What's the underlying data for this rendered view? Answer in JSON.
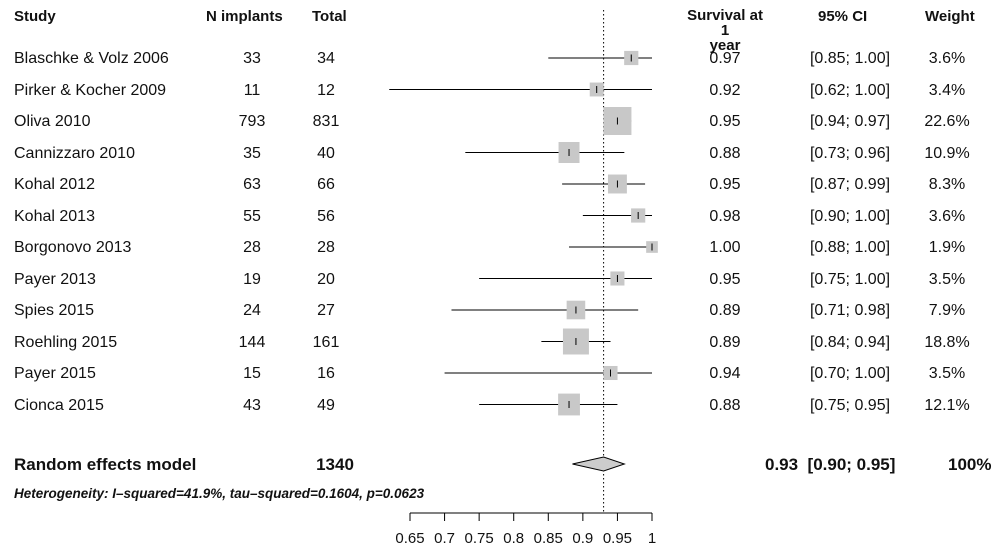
{
  "headers": {
    "study": "Study",
    "n_implants": "N implants",
    "total": "Total",
    "survival_line1": "Survival at 1",
    "survival_line2": "year",
    "ci": "95% CI",
    "weight": "Weight"
  },
  "studies": [
    {
      "name": "Blaschke & Volz 2006",
      "n": "33",
      "total": "34",
      "est": "0.97",
      "ci": "[0.85; 1.00]",
      "weight": "3.6%"
    },
    {
      "name": "Pirker & Kocher 2009",
      "n": "11",
      "total": "12",
      "est": "0.92",
      "ci": "[0.62; 1.00]",
      "weight": "3.4%"
    },
    {
      "name": "Oliva 2010",
      "n": "793",
      "total": "831",
      "est": "0.95",
      "ci": "[0.94; 0.97]",
      "weight": "22.6%"
    },
    {
      "name": "Cannizzaro 2010",
      "n": "35",
      "total": "40",
      "est": "0.88",
      "ci": "[0.73; 0.96]",
      "weight": "10.9%"
    },
    {
      "name": "Kohal 2012",
      "n": "63",
      "total": "66",
      "est": "0.95",
      "ci": "[0.87; 0.99]",
      "weight": "8.3%"
    },
    {
      "name": "Kohal 2013",
      "n": "55",
      "total": "56",
      "est": "0.98",
      "ci": "[0.90; 1.00]",
      "weight": "3.6%"
    },
    {
      "name": "Borgonovo 2013",
      "n": "28",
      "total": "28",
      "est": "1.00",
      "ci": "[0.88; 1.00]",
      "weight": "1.9%"
    },
    {
      "name": "Payer 2013",
      "n": "19",
      "total": "20",
      "est": "0.95",
      "ci": "[0.75; 1.00]",
      "weight": "3.5%"
    },
    {
      "name": "Spies 2015",
      "n": "24",
      "total": "27",
      "est": "0.89",
      "ci": "[0.71; 0.98]",
      "weight": "7.9%"
    },
    {
      "name": "Roehling 2015",
      "n": "144",
      "total": "161",
      "est": "0.89",
      "ci": "[0.84; 0.94]",
      "weight": "18.8%"
    },
    {
      "name": "Payer 2015",
      "n": "15",
      "total": "16",
      "est": "0.94",
      "ci": "[0.70; 1.00]",
      "weight": "3.5%"
    },
    {
      "name": "Cionca 2015",
      "n": "43",
      "total": "49",
      "est": "0.88",
      "ci": "[0.75; 0.95]",
      "weight": "12.1%"
    }
  ],
  "model": {
    "label": "Random effects model",
    "total": "1340",
    "est_ci": "0.93  [0.90; 0.95]",
    "weight": "100%"
  },
  "heterogeneity": "Heterogeneity: I–squared=41.9%, tau–squared=0.1604, p=0.0623",
  "chart_data": {
    "type": "forest",
    "xlim": [
      0.65,
      1.0
    ],
    "x_ticks": [
      "0.65",
      "0.7",
      "0.75",
      "0.8",
      "0.85",
      "0.9",
      "0.95",
      "1"
    ],
    "reference_line": 0.93,
    "series": [
      {
        "x": 0.97,
        "lo": 0.85,
        "hi": 1.0,
        "weight": 3.6
      },
      {
        "x": 0.92,
        "lo": 0.62,
        "hi": 1.0,
        "weight": 3.4
      },
      {
        "x": 0.95,
        "lo": 0.94,
        "hi": 0.97,
        "weight": 22.6
      },
      {
        "x": 0.88,
        "lo": 0.73,
        "hi": 0.96,
        "weight": 10.9
      },
      {
        "x": 0.95,
        "lo": 0.87,
        "hi": 0.99,
        "weight": 8.3
      },
      {
        "x": 0.98,
        "lo": 0.9,
        "hi": 1.0,
        "weight": 3.6
      },
      {
        "x": 1.0,
        "lo": 0.88,
        "hi": 1.0,
        "weight": 1.9
      },
      {
        "x": 0.95,
        "lo": 0.75,
        "hi": 1.0,
        "weight": 3.5
      },
      {
        "x": 0.89,
        "lo": 0.71,
        "hi": 0.98,
        "weight": 7.9
      },
      {
        "x": 0.89,
        "lo": 0.84,
        "hi": 0.94,
        "weight": 18.8
      },
      {
        "x": 0.94,
        "lo": 0.7,
        "hi": 1.0,
        "weight": 3.5
      },
      {
        "x": 0.88,
        "lo": 0.75,
        "hi": 0.95,
        "weight": 12.1
      }
    ],
    "summary": {
      "x": 0.93,
      "lo": 0.9,
      "hi": 0.95
    },
    "colors": {
      "box": "#c8c8c8",
      "diamond": "#cccccc",
      "line": "#000000"
    }
  }
}
